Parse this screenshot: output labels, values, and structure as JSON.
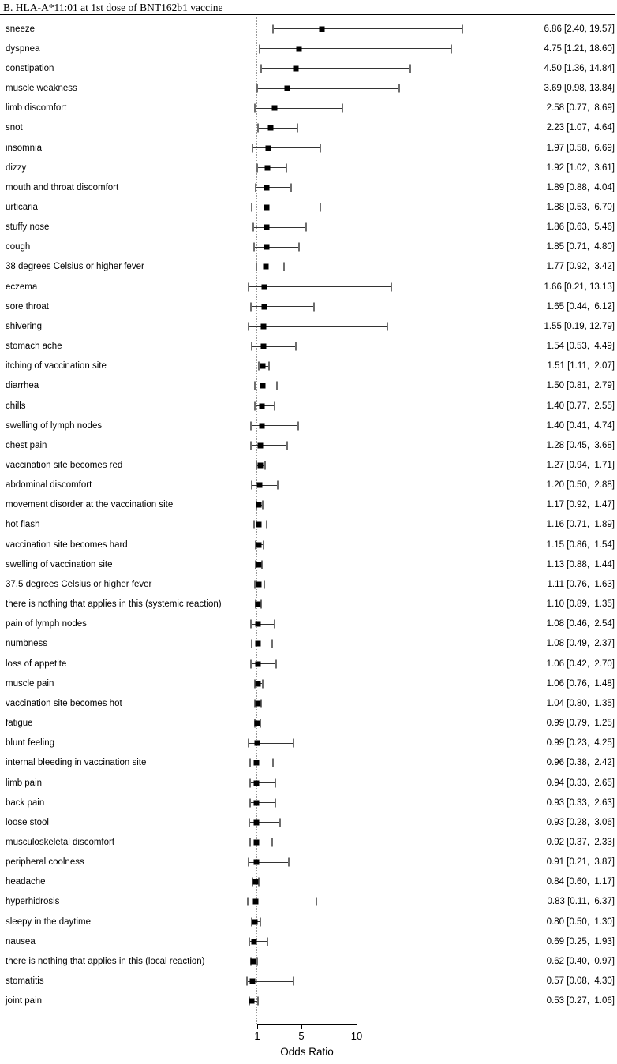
{
  "header": {
    "title": "B. HLA-A*11:01 at 1st dose of BNT162b1 vaccine"
  },
  "chart_data": {
    "type": "forest",
    "title": "B. HLA-A*11:01 at 1st dose of BNT162b1 vaccine",
    "xlabel": "Odds Ratio",
    "x_scale": "linear",
    "x_ticks": [
      1,
      5,
      10
    ],
    "x_tick_labels": [
      "1",
      "5",
      "10"
    ],
    "reference_line": 1,
    "marker": "black-square",
    "rows": [
      {
        "label": "sneeze",
        "or": 6.86,
        "lo": 2.4,
        "hi": 19.57,
        "display": "6.86 [2.40, 19.57]"
      },
      {
        "label": "dyspnea",
        "or": 4.75,
        "lo": 1.21,
        "hi": 18.6,
        "display": "4.75 [1.21, 18.60]"
      },
      {
        "label": "constipation",
        "or": 4.5,
        "lo": 1.36,
        "hi": 14.84,
        "display": "4.50 [1.36, 14.84]"
      },
      {
        "label": "muscle weakness",
        "or": 3.69,
        "lo": 0.98,
        "hi": 13.84,
        "display": "3.69 [0.98, 13.84]"
      },
      {
        "label": "limb discomfort",
        "or": 2.58,
        "lo": 0.77,
        "hi": 8.69,
        "display": "2.58 [0.77,  8.69]"
      },
      {
        "label": "snot",
        "or": 2.23,
        "lo": 1.07,
        "hi": 4.64,
        "display": "2.23 [1.07,  4.64]"
      },
      {
        "label": "insomnia",
        "or": 1.97,
        "lo": 0.58,
        "hi": 6.69,
        "display": "1.97 [0.58,  6.69]"
      },
      {
        "label": "dizzy",
        "or": 1.92,
        "lo": 1.02,
        "hi": 3.61,
        "display": "1.92 [1.02,  3.61]"
      },
      {
        "label": "mouth and throat discomfort",
        "or": 1.89,
        "lo": 0.88,
        "hi": 4.04,
        "display": "1.89 [0.88,  4.04]"
      },
      {
        "label": "urticaria",
        "or": 1.88,
        "lo": 0.53,
        "hi": 6.7,
        "display": "1.88 [0.53,  6.70]"
      },
      {
        "label": "stuffy nose",
        "or": 1.86,
        "lo": 0.63,
        "hi": 5.46,
        "display": "1.86 [0.63,  5.46]"
      },
      {
        "label": "cough",
        "or": 1.85,
        "lo": 0.71,
        "hi": 4.8,
        "display": "1.85 [0.71,  4.80]"
      },
      {
        "label": "38 degrees Celsius or higher fever",
        "or": 1.77,
        "lo": 0.92,
        "hi": 3.42,
        "display": "1.77 [0.92,  3.42]"
      },
      {
        "label": "eczema",
        "or": 1.66,
        "lo": 0.21,
        "hi": 13.13,
        "display": "1.66 [0.21, 13.13]"
      },
      {
        "label": "sore throat",
        "or": 1.65,
        "lo": 0.44,
        "hi": 6.12,
        "display": "1.65 [0.44,  6.12]"
      },
      {
        "label": "shivering",
        "or": 1.55,
        "lo": 0.19,
        "hi": 12.79,
        "display": "1.55 [0.19, 12.79]"
      },
      {
        "label": "stomach ache",
        "or": 1.54,
        "lo": 0.53,
        "hi": 4.49,
        "display": "1.54 [0.53,  4.49]"
      },
      {
        "label": "itching of vaccination site",
        "or": 1.51,
        "lo": 1.11,
        "hi": 2.07,
        "display": "1.51 [1.11,  2.07]"
      },
      {
        "label": "diarrhea",
        "or": 1.5,
        "lo": 0.81,
        "hi": 2.79,
        "display": "1.50 [0.81,  2.79]"
      },
      {
        "label": "chills",
        "or": 1.4,
        "lo": 0.77,
        "hi": 2.55,
        "display": "1.40 [0.77,  2.55]"
      },
      {
        "label": "swelling of lymph nodes",
        "or": 1.4,
        "lo": 0.41,
        "hi": 4.74,
        "display": "1.40 [0.41,  4.74]"
      },
      {
        "label": "chest pain",
        "or": 1.28,
        "lo": 0.45,
        "hi": 3.68,
        "display": "1.28 [0.45,  3.68]"
      },
      {
        "label": "vaccination site becomes red",
        "or": 1.27,
        "lo": 0.94,
        "hi": 1.71,
        "display": "1.27 [0.94,  1.71]"
      },
      {
        "label": "abdominal discomfort",
        "or": 1.2,
        "lo": 0.5,
        "hi": 2.88,
        "display": "1.20 [0.50,  2.88]"
      },
      {
        "label": "movement disorder at the vaccination site",
        "or": 1.17,
        "lo": 0.92,
        "hi": 1.47,
        "display": "1.17 [0.92,  1.47]"
      },
      {
        "label": "hot flash",
        "or": 1.16,
        "lo": 0.71,
        "hi": 1.89,
        "display": "1.16 [0.71,  1.89]"
      },
      {
        "label": "vaccination site becomes hard",
        "or": 1.15,
        "lo": 0.86,
        "hi": 1.54,
        "display": "1.15 [0.86,  1.54]"
      },
      {
        "label": "swelling of vaccination site",
        "or": 1.13,
        "lo": 0.88,
        "hi": 1.44,
        "display": "1.13 [0.88,  1.44]"
      },
      {
        "label": "37.5 degrees Celsius or higher fever",
        "or": 1.11,
        "lo": 0.76,
        "hi": 1.63,
        "display": "1.11 [0.76,  1.63]"
      },
      {
        "label": "there is nothing that applies in this (systemic reaction)",
        "or": 1.1,
        "lo": 0.89,
        "hi": 1.35,
        "display": "1.10 [0.89,  1.35]"
      },
      {
        "label": "pain of lymph nodes",
        "or": 1.08,
        "lo": 0.46,
        "hi": 2.54,
        "display": "1.08 [0.46,  2.54]"
      },
      {
        "label": "numbness",
        "or": 1.08,
        "lo": 0.49,
        "hi": 2.37,
        "display": "1.08 [0.49,  2.37]"
      },
      {
        "label": "loss of appetite",
        "or": 1.06,
        "lo": 0.42,
        "hi": 2.7,
        "display": "1.06 [0.42,  2.70]"
      },
      {
        "label": "muscle pain",
        "or": 1.06,
        "lo": 0.76,
        "hi": 1.48,
        "display": "1.06 [0.76,  1.48]"
      },
      {
        "label": "vaccination site becomes hot",
        "or": 1.04,
        "lo": 0.8,
        "hi": 1.35,
        "display": "1.04 [0.80,  1.35]"
      },
      {
        "label": "fatigue",
        "or": 0.99,
        "lo": 0.79,
        "hi": 1.25,
        "display": "0.99 [0.79,  1.25]"
      },
      {
        "label": "blunt feeling",
        "or": 0.99,
        "lo": 0.23,
        "hi": 4.25,
        "display": "0.99 [0.23,  4.25]"
      },
      {
        "label": "internal bleeding in vaccination site",
        "or": 0.96,
        "lo": 0.38,
        "hi": 2.42,
        "display": "0.96 [0.38,  2.42]"
      },
      {
        "label": "limb pain",
        "or": 0.94,
        "lo": 0.33,
        "hi": 2.65,
        "display": "0.94 [0.33,  2.65]"
      },
      {
        "label": "back pain",
        "or": 0.93,
        "lo": 0.33,
        "hi": 2.63,
        "display": "0.93 [0.33,  2.63]"
      },
      {
        "label": "loose stool",
        "or": 0.93,
        "lo": 0.28,
        "hi": 3.06,
        "display": "0.93 [0.28,  3.06]"
      },
      {
        "label": "musculoskeletal discomfort",
        "or": 0.92,
        "lo": 0.37,
        "hi": 2.33,
        "display": "0.92 [0.37,  2.33]"
      },
      {
        "label": "peripheral coolness",
        "or": 0.91,
        "lo": 0.21,
        "hi": 3.87,
        "display": "0.91 [0.21,  3.87]"
      },
      {
        "label": "headache",
        "or": 0.84,
        "lo": 0.6,
        "hi": 1.17,
        "display": "0.84 [0.60,  1.17]"
      },
      {
        "label": "hyperhidrosis",
        "or": 0.83,
        "lo": 0.11,
        "hi": 6.37,
        "display": "0.83 [0.11,  6.37]"
      },
      {
        "label": "sleepy in the daytime",
        "or": 0.8,
        "lo": 0.5,
        "hi": 1.3,
        "display": "0.80 [0.50,  1.30]"
      },
      {
        "label": "nausea",
        "or": 0.69,
        "lo": 0.25,
        "hi": 1.93,
        "display": "0.69 [0.25,  1.93]"
      },
      {
        "label": "there is nothing that applies in this (local reaction)",
        "or": 0.62,
        "lo": 0.4,
        "hi": 0.97,
        "display": "0.62 [0.40,  0.97]"
      },
      {
        "label": "stomatitis",
        "or": 0.57,
        "lo": 0.08,
        "hi": 4.3,
        "display": "0.57 [0.08,  4.30]"
      },
      {
        "label": "joint pain",
        "or": 0.53,
        "lo": 0.27,
        "hi": 1.06,
        "display": "0.53 [0.27,  1.06]"
      }
    ],
    "colors": {
      "marker": "#000000",
      "ci_line": "#333333",
      "reference_line": "#999999",
      "axis": "#000000"
    }
  }
}
